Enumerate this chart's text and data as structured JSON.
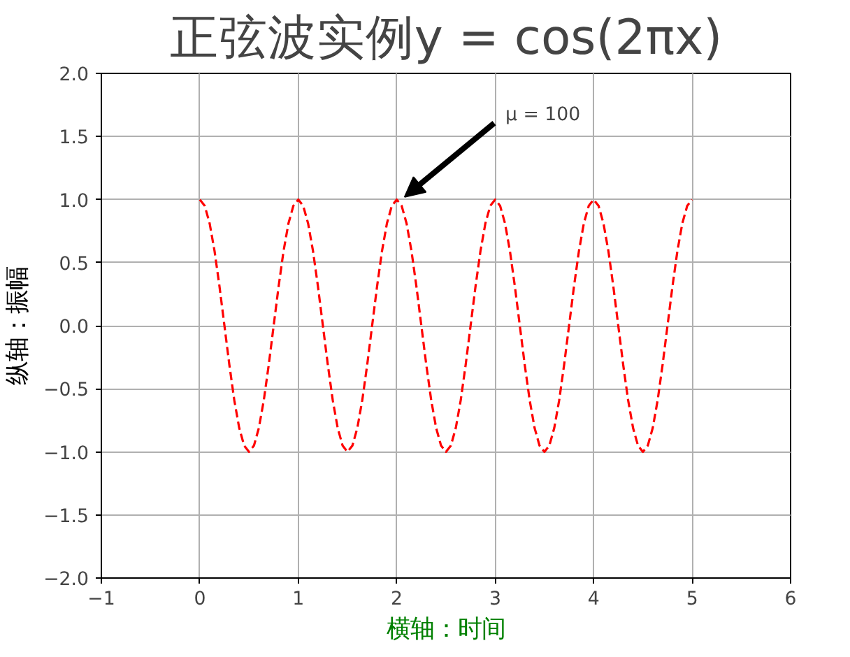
{
  "chart_data": {
    "type": "line",
    "title": "正弦波实例y = cos(2πx)",
    "xlabel": "横轴：时间",
    "ylabel": "纵轴：振幅",
    "x": [
      0,
      0.05,
      0.1,
      0.15,
      0.2,
      0.25,
      0.3,
      0.35,
      0.4,
      0.45,
      0.5,
      0.55,
      0.6,
      0.65,
      0.7,
      0.75,
      0.8,
      0.85,
      0.9,
      0.95,
      1,
      1.05,
      1.1,
      1.15,
      1.2,
      1.25,
      1.3,
      1.35,
      1.4,
      1.45,
      1.5,
      1.55,
      1.6,
      1.65,
      1.7,
      1.75,
      1.8,
      1.85,
      1.9,
      1.95,
      2,
      2.05,
      2.1,
      2.15,
      2.2,
      2.25,
      2.3,
      2.35,
      2.4,
      2.45,
      2.5,
      2.55,
      2.6,
      2.65,
      2.7,
      2.75,
      2.8,
      2.85,
      2.9,
      2.95,
      3,
      3.05,
      3.1,
      3.15,
      3.2,
      3.25,
      3.3,
      3.35,
      3.4,
      3.45,
      3.5,
      3.55,
      3.6,
      3.65,
      3.7,
      3.75,
      3.8,
      3.85,
      3.9,
      3.95,
      4,
      4.05,
      4.1,
      4.15,
      4.2,
      4.25,
      4.3,
      4.35,
      4.4,
      4.45,
      4.5,
      4.55,
      4.6,
      4.65,
      4.7,
      4.75,
      4.8,
      4.85,
      4.9,
      4.95,
      5
    ],
    "series": [
      {
        "color": "#ff0000",
        "values": [
          1,
          0.95,
          0.81,
          0.59,
          0.31,
          0,
          -0.31,
          -0.59,
          -0.81,
          -0.95,
          -1,
          -0.95,
          -0.81,
          -0.59,
          -0.31,
          0,
          0.31,
          0.59,
          0.81,
          0.95,
          1,
          0.95,
          0.81,
          0.59,
          0.31,
          0,
          -0.31,
          -0.59,
          -0.81,
          -0.95,
          -1,
          -0.95,
          -0.81,
          -0.59,
          -0.31,
          0,
          0.31,
          0.59,
          0.81,
          0.95,
          1,
          0.95,
          0.81,
          0.59,
          0.31,
          0,
          -0.31,
          -0.59,
          -0.81,
          -0.95,
          -1,
          -0.95,
          -0.81,
          -0.59,
          -0.31,
          0,
          0.31,
          0.59,
          0.81,
          0.95,
          1,
          0.95,
          0.81,
          0.59,
          0.31,
          0,
          -0.31,
          -0.59,
          -0.81,
          -0.95,
          -1,
          -0.95,
          -0.81,
          -0.59,
          -0.31,
          0,
          0.31,
          0.59,
          0.81,
          0.95,
          1,
          0.95,
          0.81,
          0.59,
          0.31,
          0,
          -0.31,
          -0.59,
          -0.81,
          -0.95,
          -1,
          -0.95,
          -0.81,
          -0.59,
          -0.31,
          0,
          0.31,
          0.59,
          0.81,
          0.95,
          1
        ]
      }
    ],
    "xlim": [
      -1,
      6
    ],
    "xticks": [
      {
        "value": -1,
        "label": "−1"
      },
      0,
      1,
      2,
      3,
      4,
      5,
      6
    ],
    "ylim": [
      -2,
      2
    ],
    "yticks": [
      {
        "value": -2,
        "label": "−2.0"
      },
      {
        "value": -1.5,
        "label": "−1.5"
      },
      {
        "value": -1,
        "label": "−1.0"
      },
      {
        "value": -0.5,
        "label": "−0.5"
      },
      {
        "value": 0,
        "label": "0.0"
      },
      {
        "value": 0.5,
        "label": "0.5"
      },
      {
        "value": 1,
        "label": "1.0"
      },
      {
        "value": 1.5,
        "label": "1.5"
      },
      {
        "value": 2,
        "label": "2.0"
      }
    ],
    "grid": true,
    "marker": "none",
    "line_style": "dashed",
    "annotations": [
      {
        "text": "μ = 100",
        "x": 2,
        "y": 1
      }
    ]
  }
}
